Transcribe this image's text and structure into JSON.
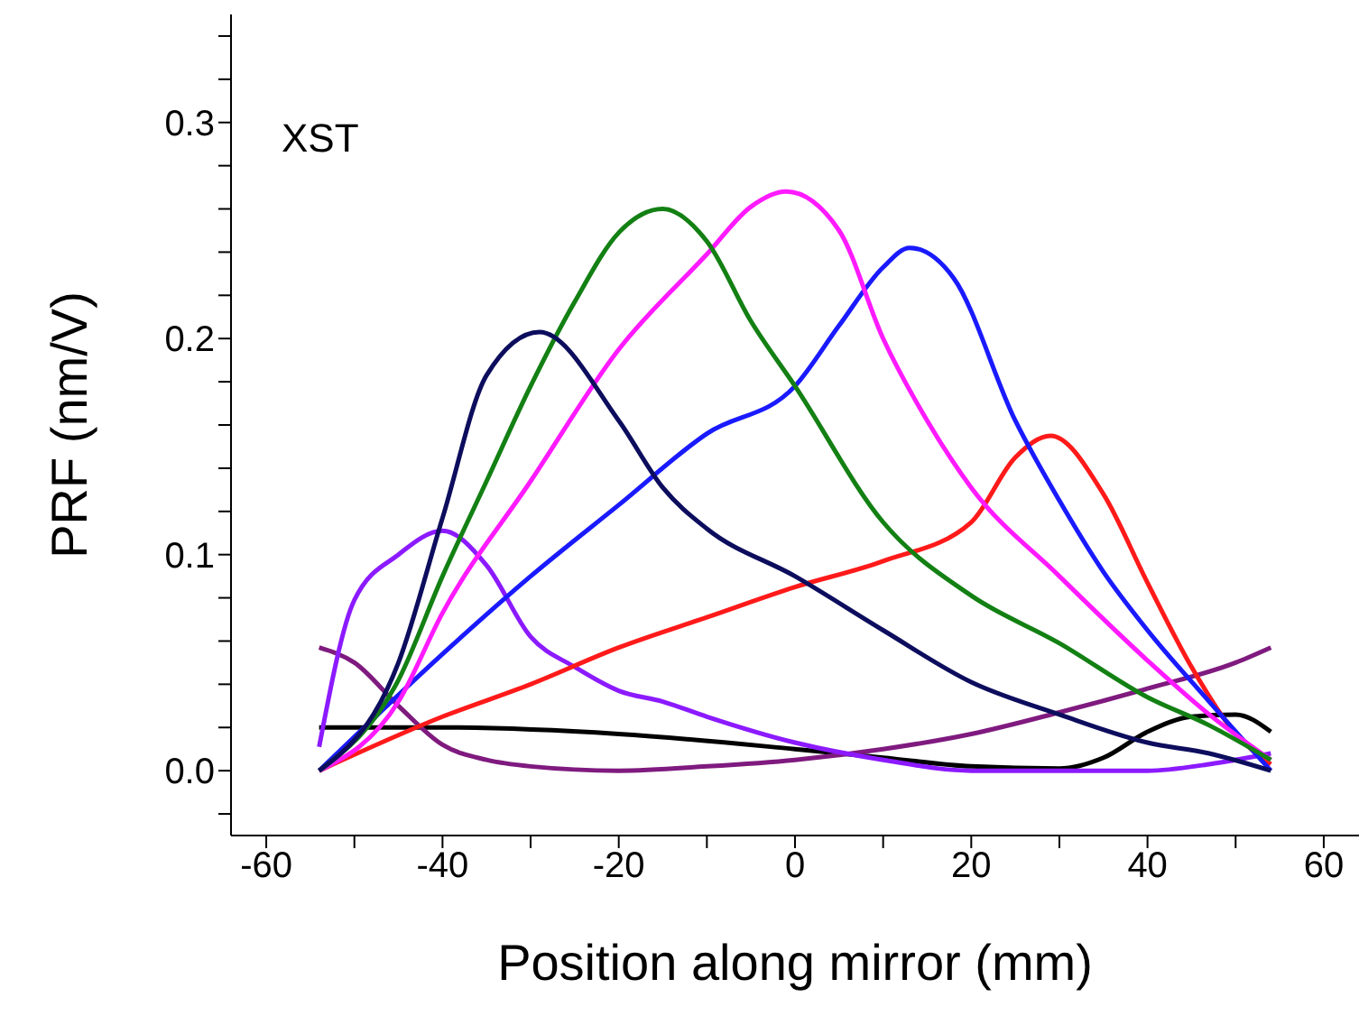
{
  "chart_data": {
    "type": "line",
    "xlabel": "Position along mirror (mm)",
    "ylabel": "PRF (nm/V)",
    "annotations": [
      "XST"
    ],
    "xlim": [
      -64,
      64
    ],
    "ylim": [
      -0.03,
      0.35
    ],
    "xticks": [
      -60,
      {
        "value": -50,
        "label": null
      },
      -40,
      {
        "value": -30,
        "label": null
      },
      -20,
      {
        "value": -10,
        "label": null
      },
      0,
      {
        "value": 10,
        "label": null
      },
      20,
      {
        "value": 30,
        "label": null
      },
      40,
      {
        "value": 50,
        "label": null
      },
      60
    ],
    "yticks": [
      {
        "value": -0.02,
        "label": null
      },
      {
        "value": 0,
        "label": "0.0"
      },
      {
        "value": 0.02,
        "label": null
      },
      {
        "value": 0.04,
        "label": null
      },
      {
        "value": 0.06,
        "label": null
      },
      {
        "value": 0.08,
        "label": null
      },
      {
        "value": 0.1,
        "label": "0.1"
      },
      {
        "value": 0.12,
        "label": null
      },
      {
        "value": 0.14,
        "label": null
      },
      {
        "value": 0.16,
        "label": null
      },
      {
        "value": 0.18,
        "label": null
      },
      {
        "value": 0.2,
        "label": "0.2"
      },
      {
        "value": 0.22,
        "label": null
      },
      {
        "value": 0.24,
        "label": null
      },
      {
        "value": 0.26,
        "label": null
      },
      {
        "value": 0.28,
        "label": null
      },
      {
        "value": 0.3,
        "label": "0.3"
      },
      {
        "value": 0.32,
        "label": null
      },
      {
        "value": 0.34,
        "label": null
      }
    ],
    "marker": "none",
    "line_style": "solid",
    "series": [
      {
        "color": "#000000",
        "x": [
          -54,
          -40,
          -20,
          0,
          10,
          20,
          30,
          35,
          40,
          45,
          50,
          54
        ],
        "values": [
          0.02,
          0.02,
          0.017,
          0.01,
          0.006,
          0.002,
          0.001,
          0.006,
          0.018,
          0.025,
          0.026,
          0.018
        ]
      },
      {
        "color": "#7f1a7f",
        "x": [
          -54,
          -50,
          -45,
          -40,
          -35,
          -30,
          -20,
          -10,
          0,
          10,
          20,
          30,
          40,
          50,
          54
        ],
        "values": [
          0.057,
          0.05,
          0.03,
          0.012,
          0.005,
          0.002,
          0.0,
          0.002,
          0.005,
          0.01,
          0.017,
          0.027,
          0.038,
          0.05,
          0.057
        ]
      },
      {
        "color": "#8c1aff",
        "x": [
          -54,
          -50,
          -45,
          -40,
          -35,
          -30,
          -25,
          -20,
          -15,
          -10,
          0,
          10,
          20,
          30,
          40,
          47,
          54
        ],
        "values": [
          0.011,
          0.079,
          0.1,
          0.111,
          0.095,
          0.062,
          0.048,
          0.037,
          0.032,
          0.025,
          0.013,
          0.005,
          0.0,
          0.0,
          0.0,
          0.003,
          0.008
        ]
      },
      {
        "color": "#ff1a1a",
        "x": [
          -54,
          -40,
          -30,
          -20,
          -10,
          0,
          10,
          20,
          25,
          29,
          35,
          40,
          45,
          50,
          54
        ],
        "values": [
          0.0,
          0.025,
          0.04,
          0.057,
          0.071,
          0.085,
          0.097,
          0.115,
          0.145,
          0.155,
          0.128,
          0.087,
          0.048,
          0.017,
          0.003
        ]
      },
      {
        "color": "#1a1aff",
        "x": [
          -54,
          -40,
          -30,
          -20,
          -10,
          0,
          5,
          10,
          13,
          18,
          25,
          30,
          35,
          40,
          47,
          54
        ],
        "values": [
          0.0,
          0.054,
          0.09,
          0.123,
          0.156,
          0.178,
          0.206,
          0.233,
          0.242,
          0.228,
          0.162,
          0.125,
          0.092,
          0.065,
          0.032,
          0.0
        ]
      },
      {
        "color": "#ff1aff",
        "x": [
          -54,
          -45,
          -40,
          -30,
          -20,
          -10,
          -5,
          -1,
          5,
          10,
          15,
          20,
          30,
          40,
          47,
          54
        ],
        "values": [
          0.0,
          0.032,
          0.073,
          0.134,
          0.195,
          0.239,
          0.261,
          0.268,
          0.25,
          0.2,
          0.162,
          0.131,
          0.09,
          0.051,
          0.026,
          0.005
        ]
      },
      {
        "color": "#138013",
        "x": [
          -54,
          -45,
          -40,
          -35,
          -30,
          -25,
          -20,
          -15,
          -10,
          -5,
          0,
          10,
          20,
          30,
          40,
          47,
          54
        ],
        "values": [
          0.0,
          0.042,
          0.09,
          0.134,
          0.178,
          0.217,
          0.249,
          0.26,
          0.245,
          0.208,
          0.178,
          0.115,
          0.081,
          0.059,
          0.034,
          0.021,
          0.005
        ]
      },
      {
        "color": "#0d0d5e",
        "x": [
          -54,
          -45,
          -40,
          -35,
          -29,
          -20,
          -15,
          -10,
          0,
          10,
          20,
          30,
          40,
          47,
          54
        ],
        "values": [
          0.0,
          0.05,
          0.117,
          0.183,
          0.203,
          0.162,
          0.131,
          0.112,
          0.09,
          0.065,
          0.041,
          0.026,
          0.013,
          0.008,
          0.0
        ]
      }
    ]
  }
}
